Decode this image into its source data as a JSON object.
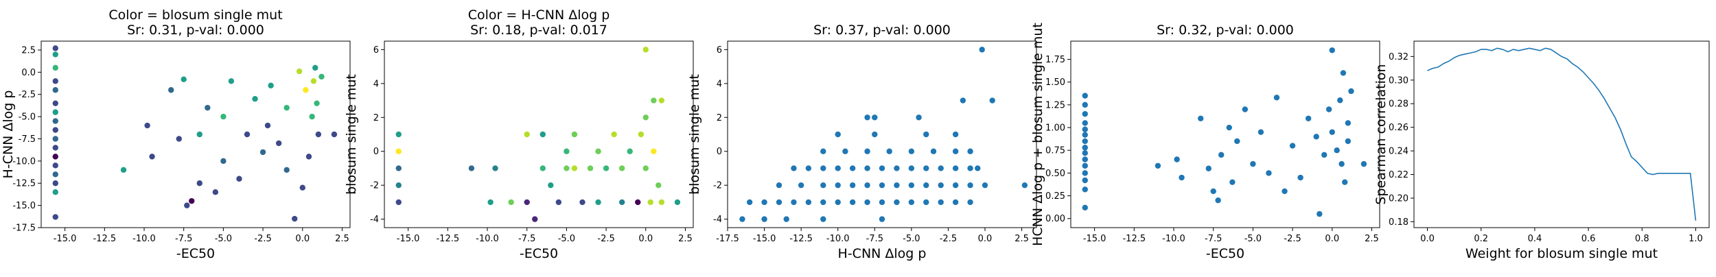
{
  "chart_data": [
    {
      "type": "scatter",
      "title": "Color = blosum single mut\nSr: 0.31, p-val: 0.000",
      "xlabel": "-EC50",
      "ylabel": "H-CNN Δlog p",
      "xlim": [
        -16.5,
        3.0
      ],
      "ylim": [
        -17.5,
        3.5
      ],
      "xticks": [
        -15.0,
        -12.5,
        -10.0,
        -7.5,
        -5.0,
        -2.5,
        0.0,
        2.5
      ],
      "yticks": [
        2.5,
        0.0,
        -2.5,
        -5.0,
        -7.5,
        -10.0,
        -12.5,
        -15.0,
        -17.5
      ],
      "colored_by": "blosum single mut",
      "points": [
        {
          "x": -15.6,
          "y": 2.7,
          "c": -3
        },
        {
          "x": -15.6,
          "y": 2.0,
          "c": -1
        },
        {
          "x": -15.6,
          "y": 0.5,
          "c": 0
        },
        {
          "x": -15.6,
          "y": -1.0,
          "c": -3
        },
        {
          "x": -15.6,
          "y": -2.0,
          "c": -2
        },
        {
          "x": -15.6,
          "y": -3.5,
          "c": -3
        },
        {
          "x": -15.6,
          "y": -4.5,
          "c": -1
        },
        {
          "x": -15.6,
          "y": -5.5,
          "c": -2
        },
        {
          "x": -15.6,
          "y": -6.5,
          "c": -3
        },
        {
          "x": -15.6,
          "y": -7.5,
          "c": -2
        },
        {
          "x": -15.6,
          "y": -8.5,
          "c": -3
        },
        {
          "x": -15.6,
          "y": -9.5,
          "c": -4
        },
        {
          "x": -15.6,
          "y": -10.5,
          "c": -3
        },
        {
          "x": -15.6,
          "y": -11.5,
          "c": -2
        },
        {
          "x": -15.6,
          "y": -12.5,
          "c": -3
        },
        {
          "x": -15.6,
          "y": -13.5,
          "c": -1
        },
        {
          "x": -15.6,
          "y": -16.3,
          "c": -3
        },
        {
          "x": -11.3,
          "y": -11.0,
          "c": -1
        },
        {
          "x": -9.8,
          "y": -6.0,
          "c": -3
        },
        {
          "x": -9.5,
          "y": -9.5,
          "c": -3
        },
        {
          "x": -8.3,
          "y": -2.0,
          "c": -2
        },
        {
          "x": -7.5,
          "y": -0.8,
          "c": -1
        },
        {
          "x": -7.8,
          "y": -7.5,
          "c": -3
        },
        {
          "x": -7.3,
          "y": -15.0,
          "c": -3
        },
        {
          "x": -7.0,
          "y": -14.5,
          "c": -4
        },
        {
          "x": -6.5,
          "y": -12.5,
          "c": -3
        },
        {
          "x": -6.5,
          "y": -7.0,
          "c": -1
        },
        {
          "x": -6.0,
          "y": -4.0,
          "c": -2
        },
        {
          "x": -5.5,
          "y": -13.5,
          "c": -3
        },
        {
          "x": -5.0,
          "y": -5.0,
          "c": 0
        },
        {
          "x": -5.0,
          "y": -10.0,
          "c": -2
        },
        {
          "x": -4.5,
          "y": -1.0,
          "c": -1
        },
        {
          "x": -4.0,
          "y": -12.0,
          "c": -3
        },
        {
          "x": -3.5,
          "y": -7.0,
          "c": -3
        },
        {
          "x": -3.0,
          "y": -3.0,
          "c": -1
        },
        {
          "x": -2.5,
          "y": -9.0,
          "c": -2
        },
        {
          "x": -2.2,
          "y": -6.0,
          "c": -3
        },
        {
          "x": -2.0,
          "y": -1.5,
          "c": -1
        },
        {
          "x": -1.5,
          "y": -8.0,
          "c": -3
        },
        {
          "x": -1.0,
          "y": -4.0,
          "c": 0
        },
        {
          "x": -1.0,
          "y": -11.0,
          "c": -2
        },
        {
          "x": -0.5,
          "y": -16.5,
          "c": -3
        },
        {
          "x": -0.2,
          "y": 0.1,
          "c": 1
        },
        {
          "x": 0.0,
          "y": -13.0,
          "c": -3
        },
        {
          "x": 0.2,
          "y": -2.0,
          "c": 2
        },
        {
          "x": 0.4,
          "y": -9.5,
          "c": -3
        },
        {
          "x": 0.6,
          "y": -5.0,
          "c": 0
        },
        {
          "x": 0.7,
          "y": -1.0,
          "c": 1
        },
        {
          "x": 0.8,
          "y": 0.5,
          "c": -1
        },
        {
          "x": 0.9,
          "y": -3.5,
          "c": 0
        },
        {
          "x": 1.0,
          "y": -7.0,
          "c": -3
        },
        {
          "x": 1.2,
          "y": -0.5,
          "c": 0
        },
        {
          "x": 2.0,
          "y": -7.0,
          "c": -3
        }
      ]
    },
    {
      "type": "scatter",
      "title": "Color = H-CNN Δlog p\nSr: 0.18, p-val: 0.017",
      "xlabel": "-EC50",
      "ylabel": "blosum single mut",
      "xlim": [
        -16.5,
        3.0
      ],
      "ylim": [
        -4.5,
        6.5
      ],
      "xticks": [
        -15.0,
        -12.5,
        -10.0,
        -7.5,
        -5.0,
        -2.5,
        0.0,
        2.5
      ],
      "yticks": [
        -4,
        -2,
        0,
        2,
        4,
        6
      ],
      "colored_by": "H-CNN Δlog p",
      "points": [
        {
          "x": -15.6,
          "y": 1,
          "c": -6
        },
        {
          "x": -15.6,
          "y": 0,
          "c": 2
        },
        {
          "x": -15.6,
          "y": -1,
          "c": -10
        },
        {
          "x": -15.6,
          "y": -2,
          "c": -8
        },
        {
          "x": -15.6,
          "y": -3,
          "c": -12
        },
        {
          "x": -11.0,
          "y": -1,
          "c": -11
        },
        {
          "x": -9.8,
          "y": -3,
          "c": -6
        },
        {
          "x": -9.5,
          "y": -1,
          "c": -9
        },
        {
          "x": -8.5,
          "y": -3,
          "c": -2
        },
        {
          "x": -7.5,
          "y": 1,
          "c": -1
        },
        {
          "x": -7.5,
          "y": -3,
          "c": -15
        },
        {
          "x": -7.0,
          "y": -4,
          "c": -14
        },
        {
          "x": -6.5,
          "y": 1,
          "c": -7
        },
        {
          "x": -6.5,
          "y": -1,
          "c": -4
        },
        {
          "x": -6.0,
          "y": -2,
          "c": -6
        },
        {
          "x": -5.5,
          "y": -3,
          "c": -13
        },
        {
          "x": -5.0,
          "y": -1,
          "c": -3
        },
        {
          "x": -5.0,
          "y": 0,
          "c": -5
        },
        {
          "x": -4.5,
          "y": -1,
          "c": -1
        },
        {
          "x": -4.5,
          "y": 1,
          "c": -2
        },
        {
          "x": -4.0,
          "y": -3,
          "c": -12
        },
        {
          "x": -3.5,
          "y": -1,
          "c": -2
        },
        {
          "x": -3.0,
          "y": 0,
          "c": -3
        },
        {
          "x": -3.0,
          "y": -3,
          "c": -7
        },
        {
          "x": -2.5,
          "y": -1,
          "c": -4
        },
        {
          "x": -2.0,
          "y": 1,
          "c": -1
        },
        {
          "x": -1.5,
          "y": -3,
          "c": -9
        },
        {
          "x": -1.5,
          "y": -1,
          "c": -2
        },
        {
          "x": -1.0,
          "y": 0,
          "c": -4
        },
        {
          "x": -0.5,
          "y": -3,
          "c": -16
        },
        {
          "x": -0.3,
          "y": 1,
          "c": 0
        },
        {
          "x": 0.0,
          "y": 6,
          "c": 0
        },
        {
          "x": 0.0,
          "y": -1,
          "c": -3
        },
        {
          "x": 0.0,
          "y": 2,
          "c": -2
        },
        {
          "x": 0.3,
          "y": -3,
          "c": -1
        },
        {
          "x": 0.5,
          "y": 3,
          "c": -2
        },
        {
          "x": 0.5,
          "y": 0,
          "c": 1
        },
        {
          "x": 0.8,
          "y": -2,
          "c": -3
        },
        {
          "x": 1.0,
          "y": 3,
          "c": -1
        },
        {
          "x": 1.0,
          "y": -3,
          "c": -1
        },
        {
          "x": 2.0,
          "y": -3,
          "c": -7
        }
      ]
    },
    {
      "type": "scatter",
      "title": "Sr: 0.37, p-val: 0.000",
      "xlabel": "H-CNN Δlog p",
      "ylabel": "blosum single mut",
      "xlim": [
        -17.5,
        3.5
      ],
      "ylim": [
        -4.5,
        6.5
      ],
      "xticks": [
        -17.5,
        -15.0,
        -12.5,
        -10.0,
        -7.5,
        -5.0,
        -2.5,
        0.0,
        2.5
      ],
      "yticks": [
        -4,
        -2,
        0,
        2,
        4,
        6
      ],
      "points": [
        {
          "x": -16.5,
          "y": -4
        },
        {
          "x": -15.0,
          "y": -4
        },
        {
          "x": -13.5,
          "y": -4
        },
        {
          "x": -11.0,
          "y": -4
        },
        {
          "x": -7.0,
          "y": -4
        },
        {
          "x": -16.0,
          "y": -3
        },
        {
          "x": -15.0,
          "y": -3
        },
        {
          "x": -14.0,
          "y": -3
        },
        {
          "x": -13.0,
          "y": -3
        },
        {
          "x": -12.0,
          "y": -3
        },
        {
          "x": -11.0,
          "y": -3
        },
        {
          "x": -10.0,
          "y": -3
        },
        {
          "x": -9.0,
          "y": -3
        },
        {
          "x": -8.0,
          "y": -3
        },
        {
          "x": -7.0,
          "y": -3
        },
        {
          "x": -6.0,
          "y": -3
        },
        {
          "x": -5.0,
          "y": -3
        },
        {
          "x": -4.0,
          "y": -3
        },
        {
          "x": -3.0,
          "y": -3
        },
        {
          "x": -2.0,
          "y": -3
        },
        {
          "x": -1.0,
          "y": -3
        },
        {
          "x": -14.0,
          "y": -2
        },
        {
          "x": -12.5,
          "y": -2
        },
        {
          "x": -11.0,
          "y": -2
        },
        {
          "x": -10.0,
          "y": -2
        },
        {
          "x": -9.0,
          "y": -2
        },
        {
          "x": -8.0,
          "y": -2
        },
        {
          "x": -7.0,
          "y": -2
        },
        {
          "x": -6.0,
          "y": -2
        },
        {
          "x": -5.0,
          "y": -2
        },
        {
          "x": -4.0,
          "y": -2
        },
        {
          "x": -3.0,
          "y": -2
        },
        {
          "x": -2.0,
          "y": -2
        },
        {
          "x": -1.0,
          "y": -2
        },
        {
          "x": 0.0,
          "y": -2
        },
        {
          "x": 2.7,
          "y": -2
        },
        {
          "x": -13.0,
          "y": -1
        },
        {
          "x": -12.0,
          "y": -1
        },
        {
          "x": -11.0,
          "y": -1
        },
        {
          "x": -10.0,
          "y": -1
        },
        {
          "x": -9.0,
          "y": -1
        },
        {
          "x": -8.0,
          "y": -1
        },
        {
          "x": -7.0,
          "y": -1
        },
        {
          "x": -6.0,
          "y": -1
        },
        {
          "x": -5.0,
          "y": -1
        },
        {
          "x": -4.0,
          "y": -1
        },
        {
          "x": -3.0,
          "y": -1
        },
        {
          "x": -2.0,
          "y": -1
        },
        {
          "x": -1.0,
          "y": -1
        },
        {
          "x": -0.5,
          "y": -1
        },
        {
          "x": -11.0,
          "y": 0
        },
        {
          "x": -9.5,
          "y": 0
        },
        {
          "x": -8.0,
          "y": 0
        },
        {
          "x": -6.5,
          "y": 0
        },
        {
          "x": -5.0,
          "y": 0
        },
        {
          "x": -3.5,
          "y": 0
        },
        {
          "x": -2.0,
          "y": 0
        },
        {
          "x": -1.0,
          "y": 0
        },
        {
          "x": -10.0,
          "y": 1
        },
        {
          "x": -7.5,
          "y": 1
        },
        {
          "x": -4.0,
          "y": 1
        },
        {
          "x": -2.0,
          "y": 1
        },
        {
          "x": -8.0,
          "y": 2
        },
        {
          "x": -7.5,
          "y": 2
        },
        {
          "x": -4.5,
          "y": 2
        },
        {
          "x": -1.5,
          "y": 3
        },
        {
          "x": 0.5,
          "y": 3
        },
        {
          "x": -0.2,
          "y": 6
        }
      ]
    },
    {
      "type": "scatter",
      "title": "Sr: 0.32, p-val: 0.000",
      "xlabel": "-EC50",
      "ylabel": "HCNN Δlog p + blosum single mut",
      "xlim": [
        -16.5,
        3.0
      ],
      "ylim": [
        -0.1,
        1.95
      ],
      "xticks": [
        -15.0,
        -12.5,
        -10.0,
        -7.5,
        -5.0,
        -2.5,
        0.0,
        2.5
      ],
      "yticks": [
        0.0,
        0.25,
        0.5,
        0.75,
        1.0,
        1.25,
        1.5,
        1.75
      ],
      "points": [
        {
          "x": -15.6,
          "y": 1.35
        },
        {
          "x": -15.6,
          "y": 1.25
        },
        {
          "x": -15.6,
          "y": 1.15
        },
        {
          "x": -15.6,
          "y": 1.05
        },
        {
          "x": -15.6,
          "y": 0.98
        },
        {
          "x": -15.6,
          "y": 0.92
        },
        {
          "x": -15.6,
          "y": 0.85
        },
        {
          "x": -15.6,
          "y": 0.78
        },
        {
          "x": -15.6,
          "y": 0.72
        },
        {
          "x": -15.6,
          "y": 0.65
        },
        {
          "x": -15.6,
          "y": 0.58
        },
        {
          "x": -15.6,
          "y": 0.5
        },
        {
          "x": -15.6,
          "y": 0.42
        },
        {
          "x": -15.6,
          "y": 0.32
        },
        {
          "x": -15.6,
          "y": 0.12
        },
        {
          "x": -11.0,
          "y": 0.58
        },
        {
          "x": -9.8,
          "y": 0.65
        },
        {
          "x": -9.5,
          "y": 0.45
        },
        {
          "x": -8.3,
          "y": 1.1
        },
        {
          "x": -7.8,
          "y": 0.55
        },
        {
          "x": -7.5,
          "y": 0.3
        },
        {
          "x": -7.2,
          "y": 0.2
        },
        {
          "x": -7.0,
          "y": 0.7
        },
        {
          "x": -6.5,
          "y": 1.0
        },
        {
          "x": -6.3,
          "y": 0.4
        },
        {
          "x": -6.0,
          "y": 0.85
        },
        {
          "x": -5.5,
          "y": 1.2
        },
        {
          "x": -5.0,
          "y": 0.6
        },
        {
          "x": -4.5,
          "y": 0.95
        },
        {
          "x": -4.0,
          "y": 0.5
        },
        {
          "x": -3.5,
          "y": 1.33
        },
        {
          "x": -3.0,
          "y": 0.3
        },
        {
          "x": -2.5,
          "y": 0.8
        },
        {
          "x": -2.0,
          "y": 0.45
        },
        {
          "x": -1.5,
          "y": 1.1
        },
        {
          "x": -1.0,
          "y": 0.9
        },
        {
          "x": -0.8,
          "y": 0.05
        },
        {
          "x": -0.5,
          "y": 0.7
        },
        {
          "x": -0.2,
          "y": 1.2
        },
        {
          "x": 0.0,
          "y": 0.95
        },
        {
          "x": 0.0,
          "y": 1.85
        },
        {
          "x": 0.3,
          "y": 0.75
        },
        {
          "x": 0.5,
          "y": 1.3
        },
        {
          "x": 0.6,
          "y": 0.6
        },
        {
          "x": 0.7,
          "y": 1.6
        },
        {
          "x": 0.8,
          "y": 0.4
        },
        {
          "x": 1.0,
          "y": 1.05
        },
        {
          "x": 1.0,
          "y": 0.85
        },
        {
          "x": 1.2,
          "y": 1.4
        },
        {
          "x": 2.0,
          "y": 0.6
        }
      ]
    },
    {
      "type": "line",
      "title": "",
      "xlabel": "Weight for blosum single mut",
      "ylabel": "Spearman correlation",
      "xlim": [
        -0.05,
        1.05
      ],
      "ylim": [
        0.175,
        0.333
      ],
      "xticks": [
        0.0,
        0.2,
        0.4,
        0.6,
        0.8,
        1.0
      ],
      "yticks": [
        0.18,
        0.2,
        0.22,
        0.24,
        0.26,
        0.28,
        0.3,
        0.32
      ],
      "x": [
        0.0,
        0.02,
        0.04,
        0.06,
        0.08,
        0.1,
        0.12,
        0.14,
        0.16,
        0.18,
        0.2,
        0.22,
        0.24,
        0.26,
        0.28,
        0.3,
        0.32,
        0.34,
        0.36,
        0.38,
        0.4,
        0.42,
        0.44,
        0.46,
        0.48,
        0.5,
        0.52,
        0.54,
        0.56,
        0.58,
        0.6,
        0.62,
        0.64,
        0.66,
        0.68,
        0.7,
        0.72,
        0.74,
        0.76,
        0.78,
        0.8,
        0.82,
        0.84,
        0.86,
        0.88,
        0.9,
        0.92,
        0.94,
        0.96,
        0.98,
        1.0
      ],
      "y": [
        0.308,
        0.31,
        0.311,
        0.314,
        0.316,
        0.319,
        0.321,
        0.322,
        0.323,
        0.324,
        0.326,
        0.326,
        0.325,
        0.327,
        0.326,
        0.324,
        0.326,
        0.325,
        0.326,
        0.327,
        0.326,
        0.325,
        0.327,
        0.326,
        0.323,
        0.32,
        0.318,
        0.314,
        0.311,
        0.307,
        0.302,
        0.297,
        0.291,
        0.284,
        0.276,
        0.268,
        0.258,
        0.246,
        0.235,
        0.231,
        0.226,
        0.221,
        0.22,
        0.221,
        0.221,
        0.221,
        0.221,
        0.221,
        0.221,
        0.221,
        0.181
      ]
    }
  ]
}
